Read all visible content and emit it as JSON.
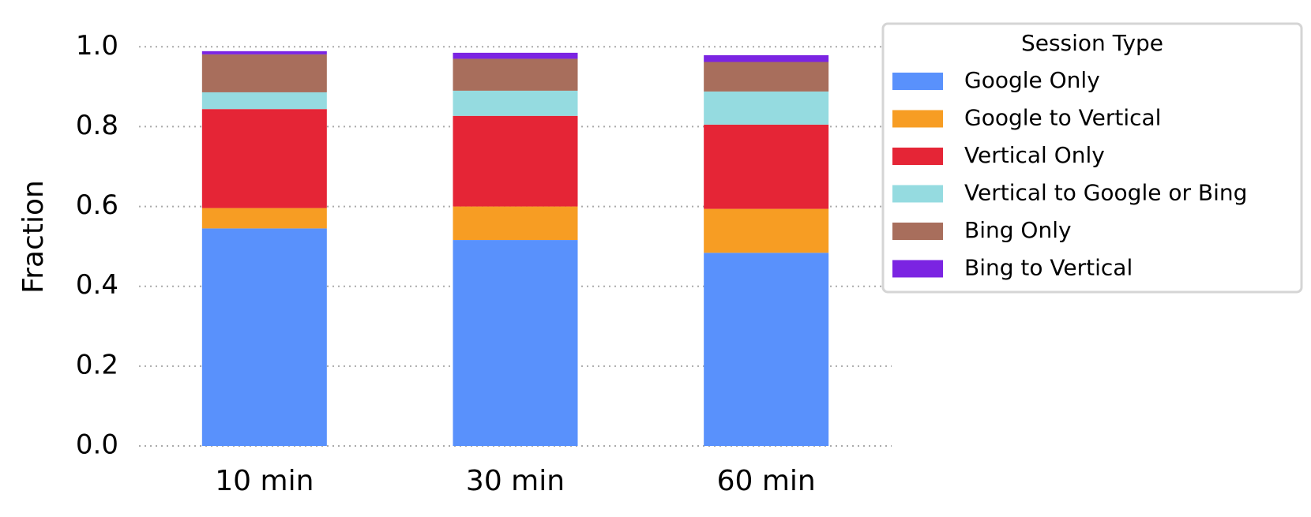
{
  "chart_data": {
    "type": "stacked_bar",
    "y_label": "Fraction",
    "categories": [
      "10 min",
      "30 min",
      "60 min"
    ],
    "series": [
      {
        "name": "Google Only",
        "color": "#5991fc",
        "values": [
          0.545,
          0.516,
          0.484
        ]
      },
      {
        "name": "Google to Vertical",
        "color": "#f79d23",
        "values": [
          0.051,
          0.084,
          0.11
        ]
      },
      {
        "name": "Vertical Only",
        "color": "#e52536",
        "values": [
          0.248,
          0.227,
          0.211
        ]
      },
      {
        "name": "Vertical to Google or Bing",
        "color": "#95dbe0",
        "values": [
          0.042,
          0.063,
          0.083
        ]
      },
      {
        "name": "Bing Only",
        "color": "#a86e5c",
        "values": [
          0.095,
          0.08,
          0.074
        ]
      },
      {
        "name": "Bing to Vertical",
        "color": "#7b24e2",
        "values": [
          0.008,
          0.015,
          0.017
        ]
      }
    ],
    "legend_title": "Session Type",
    "legend_position": "upper right",
    "ylim": [
      0,
      1.05
    ],
    "yticks": [
      {
        "value": 0,
        "label": "0.0"
      },
      {
        "value": 0.2,
        "label": "0.2"
      },
      {
        "value": 0.4,
        "label": "0.4"
      },
      {
        "value": 0.6,
        "label": "0.6"
      },
      {
        "value": 0.8,
        "label": "0.8"
      },
      {
        "value": 1.0,
        "label": "1.0"
      }
    ],
    "grid": true
  }
}
